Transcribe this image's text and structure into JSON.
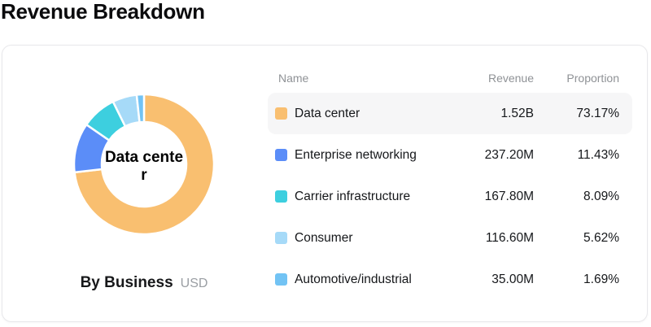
{
  "page": {
    "title": "Revenue Breakdown"
  },
  "card": {
    "chart": {
      "center_label": "Data center",
      "caption_title": "By Business",
      "caption_unit": "USD"
    },
    "table": {
      "columns": [
        "Name",
        "Revenue",
        "Proportion"
      ],
      "highlighted_row_index": 0
    }
  },
  "chart_data": {
    "type": "pie",
    "subtype": "donut",
    "title": "Revenue Breakdown",
    "subtitle": "By Business",
    "unit": "USD",
    "inner_radius_ratio": 0.6,
    "start_angle_deg": 0,
    "direction": "clockwise",
    "center_label": "Data center",
    "legend_position": "table-right",
    "series": [
      {
        "name": "Data center",
        "revenue": "1.52B",
        "revenue_musd": 1520.0,
        "proportion_pct": 73.17,
        "color": "#f9bf70"
      },
      {
        "name": "Enterprise networking",
        "revenue": "237.20M",
        "revenue_musd": 237.2,
        "proportion_pct": 11.43,
        "color": "#5b8df8"
      },
      {
        "name": "Carrier infrastructure",
        "revenue": "167.80M",
        "revenue_musd": 167.8,
        "proportion_pct": 8.09,
        "color": "#3dcfdf"
      },
      {
        "name": "Consumer",
        "revenue": "116.60M",
        "revenue_musd": 116.6,
        "proportion_pct": 5.62,
        "color": "#a6daf8"
      },
      {
        "name": "Automotive/industrial",
        "revenue": "35.00M",
        "revenue_musd": 35.0,
        "proportion_pct": 1.69,
        "color": "#72c3f4"
      }
    ]
  }
}
